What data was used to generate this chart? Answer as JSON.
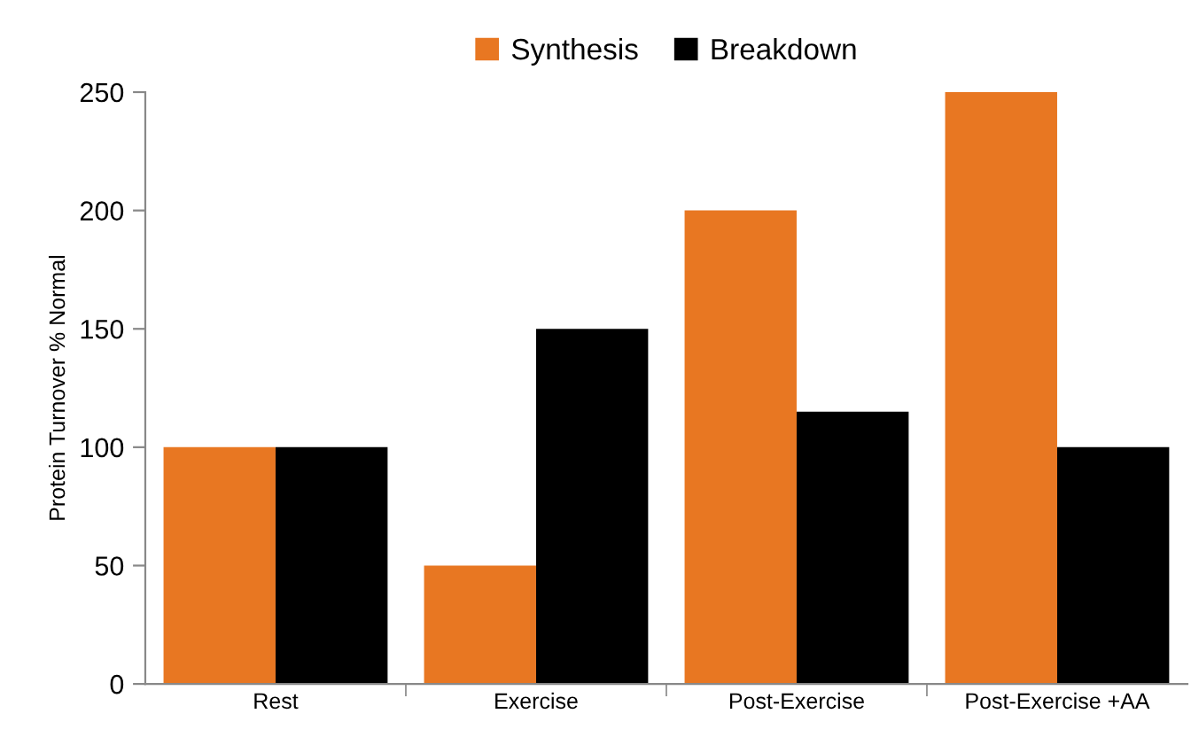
{
  "chart_data": {
    "type": "bar",
    "ylabel": "Protein Turnover % Normal",
    "categories": [
      "Rest",
      "Exercise",
      "Post-Exercise",
      "Post-Exercise +AA"
    ],
    "series": [
      {
        "name": "Synthesis",
        "color": "#e87722",
        "values": [
          100,
          50,
          200,
          250
        ]
      },
      {
        "name": "Breakdown",
        "color": "#000000",
        "values": [
          100,
          150,
          115,
          100
        ]
      }
    ],
    "ylim": [
      0,
      250
    ],
    "yticks": [
      0,
      50,
      100,
      150,
      200,
      250
    ],
    "grid": false,
    "legend": "top"
  }
}
